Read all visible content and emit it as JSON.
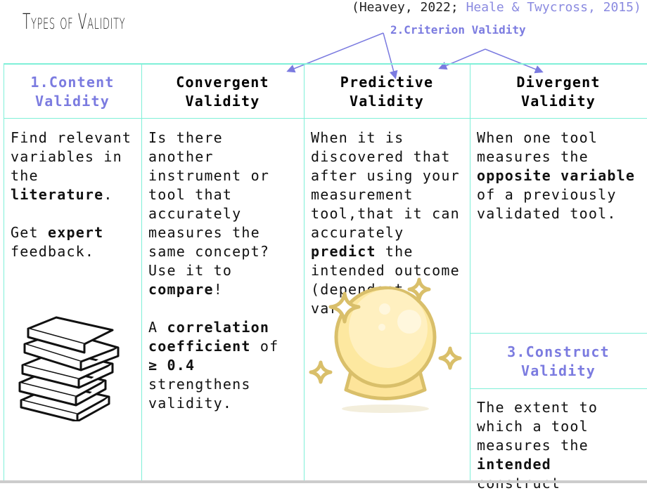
{
  "citation": {
    "prefix": "(Heavey, 2022; ",
    "link": "Heale & Twycross, 2015)"
  },
  "title": "Types of Validity",
  "criterion_label": "2.Criterion Validity",
  "columns": [
    {
      "header": "1.Content\nValidity",
      "body": [
        [
          "Find relevant\nvariables in\nthe\n",
          ""
        ],
        [
          "literature",
          "b"
        ],
        [
          ".\n\nGet ",
          ""
        ],
        [
          "expert",
          "b"
        ],
        [
          "\nfeedback.",
          ""
        ]
      ]
    },
    {
      "header": "Convergent\nValidity",
      "body": [
        [
          "Is there\nanother\ninstrument or\ntool that\naccurately\nmeasures the\nsame concept?\nUse it to\n",
          ""
        ],
        [
          "compare",
          "b"
        ],
        [
          "!\n\nA ",
          ""
        ],
        [
          "correlation\ncoefficient",
          "b"
        ],
        [
          " of\n",
          ""
        ],
        [
          "≥ 0.4",
          "b"
        ],
        [
          "\nstrengthens\nvalidity.",
          ""
        ]
      ]
    },
    {
      "header": "Predictive\nValidity",
      "body": [
        [
          "When it is\ndiscovered that\nafter using your\nmeasurement\ntool,that it can\naccurately\n",
          ""
        ],
        [
          "predict",
          "b"
        ],
        [
          " the\nintended outcome\n(dependent\nvariable).",
          ""
        ]
      ]
    },
    {
      "header": "Divergent\nValidity",
      "body": [
        [
          "When one tool\nmeasures the\n",
          ""
        ],
        [
          "opposite variable",
          "b"
        ],
        [
          "\nof a previously\nvalidated tool.",
          ""
        ]
      ]
    }
  ],
  "construct": {
    "header": "3.Construct\nValidity",
    "body": [
      [
        "The extent to\nwhich a tool\nmeasures the\n",
        ""
      ],
      [
        "intended",
        "b"
      ],
      [
        "\nconstruct",
        ""
      ]
    ]
  },
  "colors": {
    "accent": "#7b7be0",
    "grid": "#7ff0d8"
  },
  "icons": [
    "books-icon",
    "crystal-ball-icon"
  ]
}
